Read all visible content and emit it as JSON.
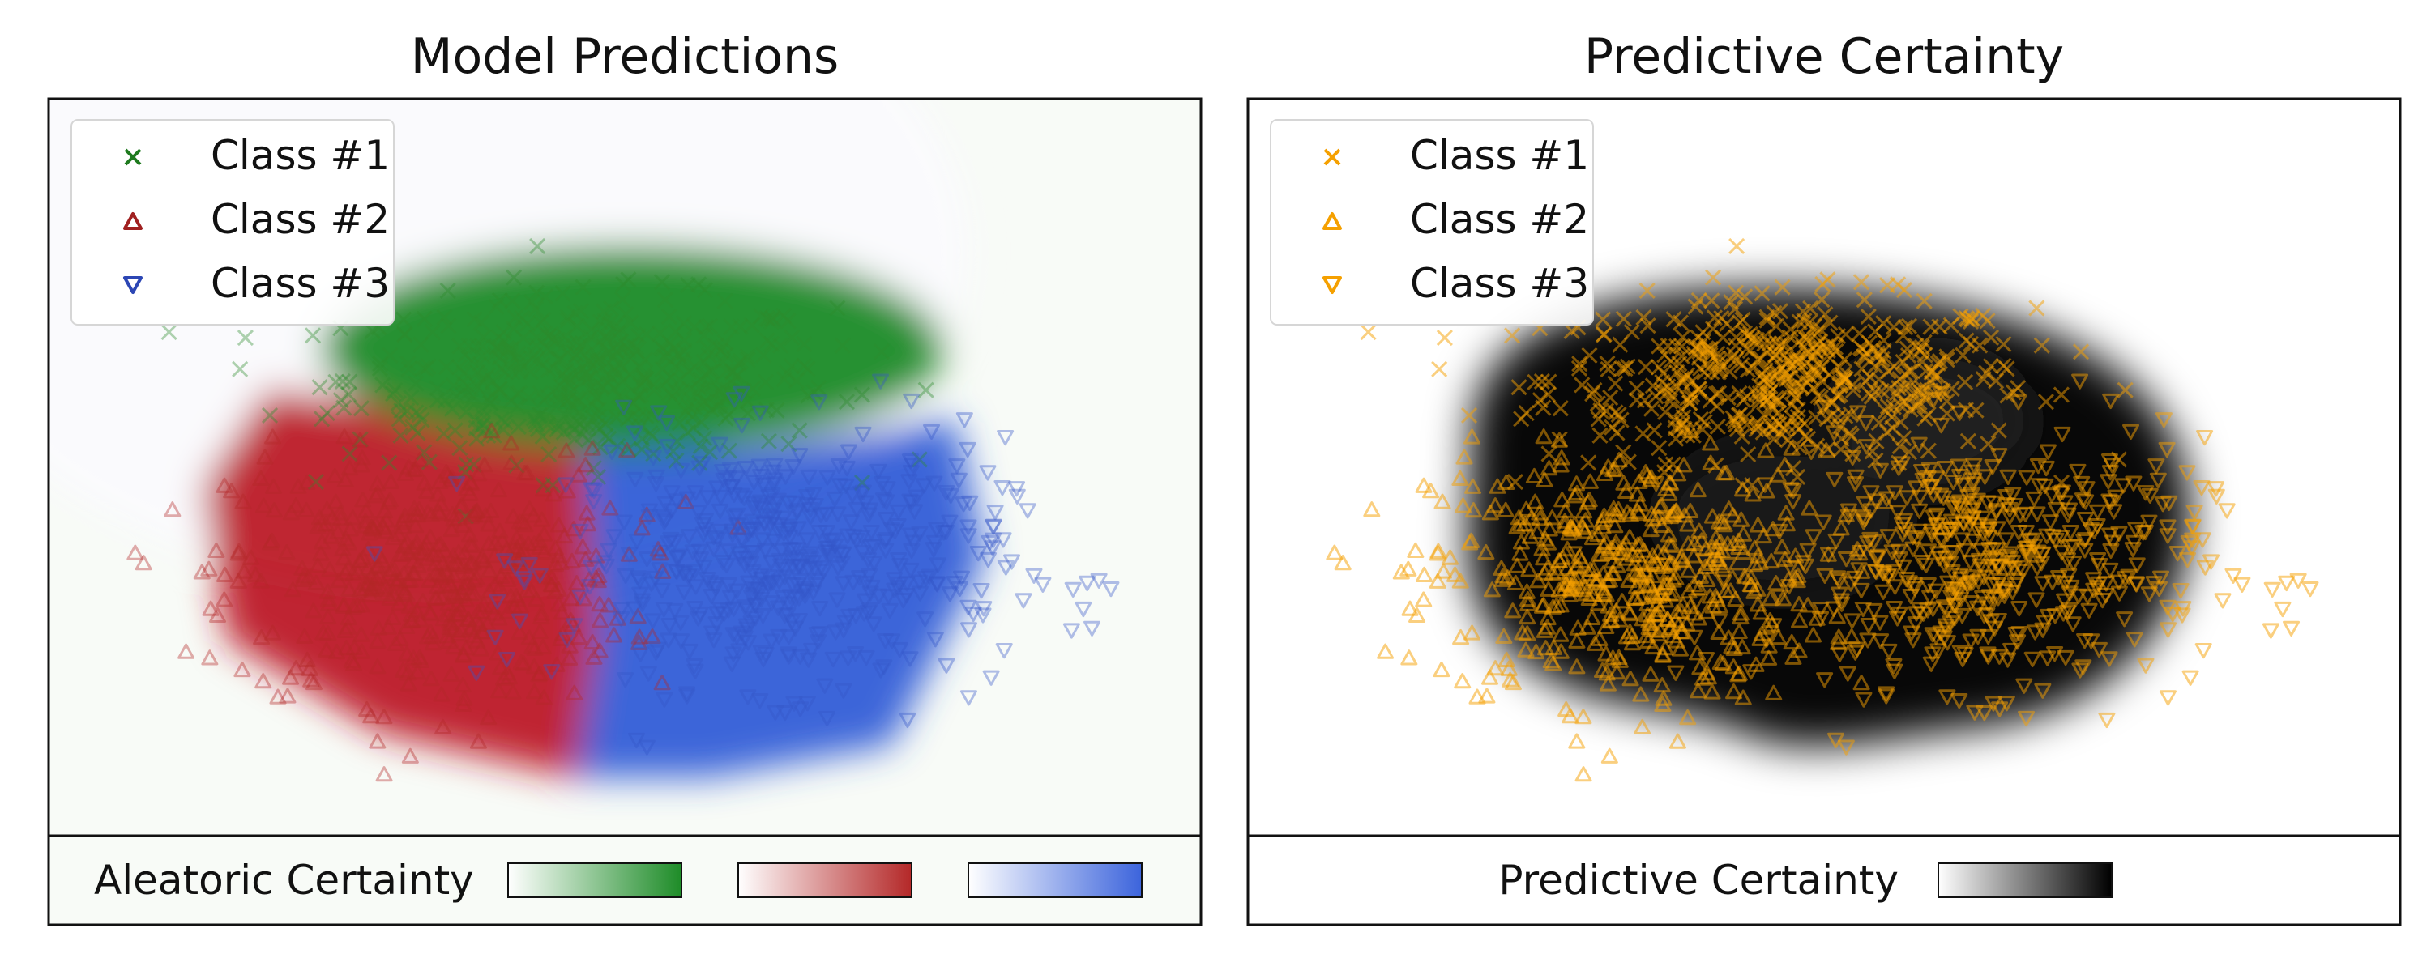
{
  "chart_data": [
    {
      "type": "scatter",
      "title": "Model Predictions",
      "xlabel": "",
      "ylabel": "",
      "background": "density-heatmap",
      "legend": {
        "position": "top-left",
        "entries": [
          {
            "label": "Class #1",
            "marker": "x",
            "color": "#1e7a1e"
          },
          {
            "label": "Class #2",
            "marker": "triangle-up",
            "color": "#a02020"
          },
          {
            "label": "Class #3",
            "marker": "triangle-down",
            "color": "#2c46b4"
          }
        ]
      },
      "series": [
        {
          "name": "Class #1",
          "color": "#2e8b2e",
          "cluster": {
            "cx": 0.47,
            "cy": 0.62,
            "sx": 0.105,
            "sy": 0.055
          }
        },
        {
          "name": "Class #2",
          "color": "#b42828",
          "cluster": {
            "cx": 0.33,
            "cy": 0.35,
            "sx": 0.085,
            "sy": 0.085
          }
        },
        {
          "name": "Class #3",
          "color": "#3456c8",
          "cluster": {
            "cx": 0.64,
            "cy": 0.37,
            "sx": 0.095,
            "sy": 0.085
          }
        }
      ],
      "colorbar": {
        "label": "Aleatoric Certainty",
        "gradients": [
          {
            "from": "#ffffff",
            "to": "#1e8c28"
          },
          {
            "from": "#ffffff",
            "to": "#b42828"
          },
          {
            "from": "#ffffff",
            "to": "#3c64dc"
          }
        ]
      }
    },
    {
      "type": "scatter",
      "title": "Predictive Certainty",
      "xlabel": "",
      "ylabel": "",
      "background": "density-heatmap",
      "legend": {
        "position": "top-left",
        "entries": [
          {
            "label": "Class #1",
            "marker": "x",
            "color": "#f5a000"
          },
          {
            "label": "Class #2",
            "marker": "triangle-up",
            "color": "#f5a000"
          },
          {
            "label": "Class #3",
            "marker": "triangle-down",
            "color": "#f5a000"
          }
        ]
      },
      "series": [
        {
          "name": "Class #1",
          "color": "#f5a000",
          "cluster": {
            "cx": 0.47,
            "cy": 0.62,
            "sx": 0.105,
            "sy": 0.055
          }
        },
        {
          "name": "Class #2",
          "color": "#f5a000",
          "cluster": {
            "cx": 0.33,
            "cy": 0.35,
            "sx": 0.085,
            "sy": 0.085
          }
        },
        {
          "name": "Class #3",
          "color": "#f5a000",
          "cluster": {
            "cx": 0.64,
            "cy": 0.37,
            "sx": 0.095,
            "sy": 0.085
          }
        }
      ],
      "colorbar": {
        "label": "Predictive Certainty",
        "gradients": [
          {
            "from": "#ffffff",
            "to": "#000000"
          }
        ]
      }
    }
  ]
}
